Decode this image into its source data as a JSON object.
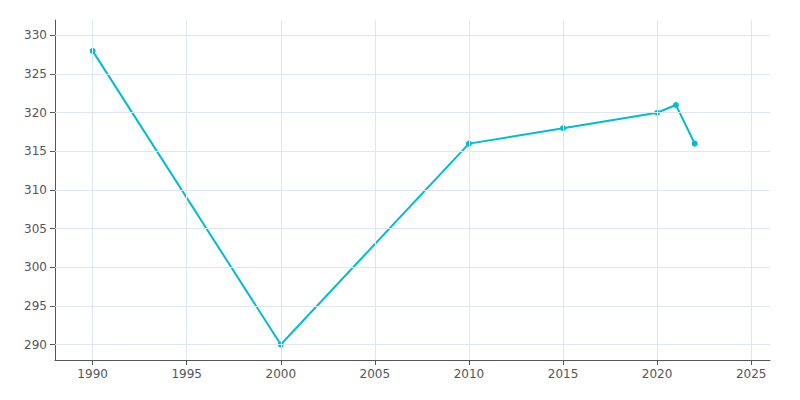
{
  "chart_data": {
    "type": "line",
    "x": [
      1990,
      2000,
      2010,
      2015,
      2020,
      2021,
      2022
    ],
    "values": [
      328,
      290,
      316,
      318,
      320,
      321,
      316
    ],
    "color": "#00bcd4",
    "marker": "circle",
    "xlim": [
      1988,
      2026
    ],
    "ylim": [
      288,
      332
    ],
    "xticks": [
      1990,
      1995,
      2000,
      2005,
      2010,
      2015,
      2020,
      2025
    ],
    "yticks": [
      290,
      295,
      300,
      305,
      310,
      315,
      320,
      325,
      330
    ],
    "grid": true
  }
}
